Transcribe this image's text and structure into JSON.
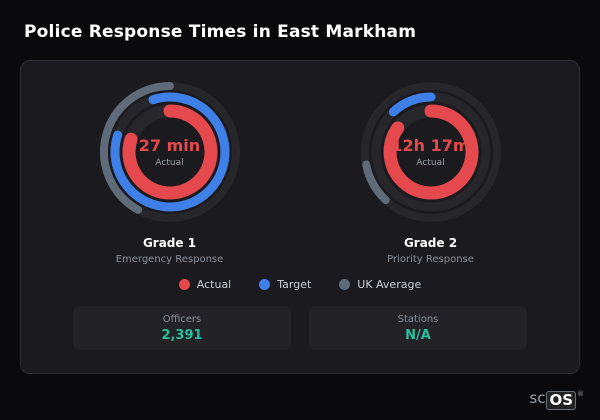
{
  "header": {
    "title": "Police Response Times in East Markham"
  },
  "chart_data": {
    "type": "gauge",
    "title": "Police Response Times in East Markham",
    "legend": {
      "position": "bottom-center",
      "items": [
        {
          "label": "Actual",
          "color": "#e5484d"
        },
        {
          "label": "Target",
          "color": "#3f7fe8"
        },
        {
          "label": "UK Average",
          "color": "#5f6b78"
        }
      ]
    },
    "gauges": [
      {
        "name": "Grade 1",
        "description": "Emergency Response",
        "value_label": "27 min",
        "value_sublabel": "Actual",
        "rings": [
          {
            "series": "UK Average",
            "color": "#5f6b78",
            "start": -0.42,
            "fraction": 0.42
          },
          {
            "series": "Target",
            "color": "#3f7fe8",
            "start": -0.05,
            "fraction": 0.85
          },
          {
            "series": "Actual",
            "color": "#e5484d",
            "start": 0,
            "fraction": 0.8
          }
        ]
      },
      {
        "name": "Grade 2",
        "description": "Priority Response",
        "value_label": "12h 17m",
        "value_sublabel": "Actual",
        "rings": [
          {
            "series": "UK Average",
            "color": "#5f6b78",
            "start": 0.62,
            "fraction": 0.1
          },
          {
            "series": "Target",
            "color": "#3f7fe8",
            "start": -0.12,
            "fraction": 0.12
          },
          {
            "series": "Actual",
            "color": "#e5484d",
            "start": 0,
            "fraction": 0.85
          }
        ]
      }
    ]
  },
  "stats": [
    {
      "label": "Officers",
      "value": "2,391"
    },
    {
      "label": "Stations",
      "value": "N/A"
    }
  ],
  "logo": {
    "prefix": "sc",
    "suffix": "OS",
    "registered": "®"
  }
}
